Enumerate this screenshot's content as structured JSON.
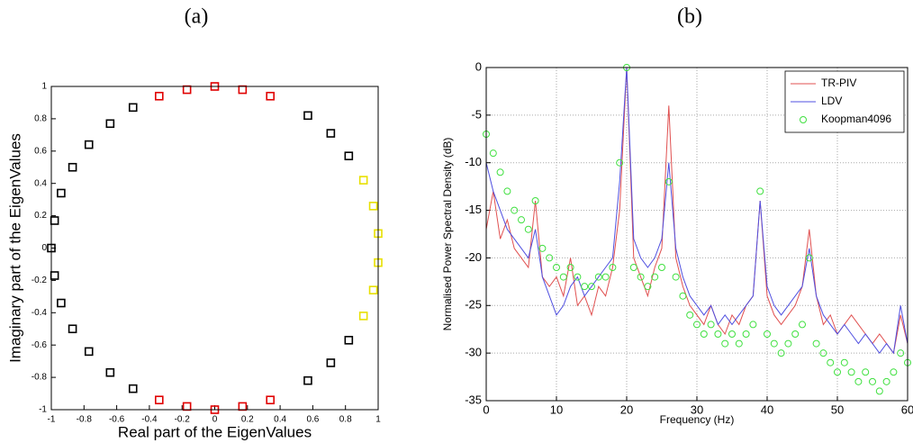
{
  "chart_data": [
    {
      "type": "scatter",
      "title": "(a)",
      "x_label": "Real part of the EigenValues",
      "y_label": "Imaginary part of the EigenValues",
      "xlim": [
        -1,
        1
      ],
      "ylim": [
        -1,
        1
      ],
      "xticks": [
        -1,
        -0.8,
        -0.6,
        -0.4,
        -0.2,
        0,
        0.2,
        0.4,
        0.6,
        0.8,
        1
      ],
      "yticks": [
        -1,
        -0.8,
        -0.6,
        -0.4,
        -0.2,
        0,
        0.2,
        0.4,
        0.6,
        0.8,
        1
      ],
      "grid": false,
      "series": [
        {
          "color": "#000000",
          "x": [
            0.82,
            0.71,
            0.57,
            -0.5,
            -0.64,
            -0.77,
            -0.87,
            -0.94,
            -0.98,
            -1,
            -0.98,
            -0.94,
            -0.87,
            -0.77,
            -0.64,
            -0.5,
            0.57,
            0.71,
            0.82
          ],
          "values": [
            0.57,
            0.71,
            0.82,
            0.87,
            0.77,
            0.64,
            0.5,
            0.34,
            0.17,
            0,
            -0.17,
            -0.34,
            -0.5,
            -0.64,
            -0.77,
            -0.87,
            -0.82,
            -0.71,
            -0.57
          ]
        },
        {
          "color": "#e00000",
          "x": [
            0.34,
            0.17,
            0,
            -0.17,
            -0.34,
            0.34,
            0.17,
            0,
            -0.17,
            -0.34
          ],
          "values": [
            0.94,
            0.98,
            1,
            0.98,
            0.94,
            -0.94,
            -0.98,
            -1,
            -0.98,
            -0.94
          ]
        },
        {
          "color": "#e8e000",
          "x": [
            0.91,
            0.97,
            1,
            1,
            0.97,
            0.91
          ],
          "values": [
            -0.42,
            -0.26,
            -0.09,
            0.09,
            0.26,
            0.42
          ]
        }
      ]
    },
    {
      "type": "line",
      "title": "(b)",
      "x_label": "Frequency (Hz)",
      "y_label": "Normalised Power Spectral Density (dB)",
      "xlim": [
        0,
        60
      ],
      "ylim": [
        -35,
        0
      ],
      "xticks": [
        0,
        10,
        20,
        30,
        40,
        50,
        60
      ],
      "yticks": [
        -35,
        -30,
        -25,
        -20,
        -15,
        -10,
        -5,
        0
      ],
      "grid": true,
      "legend": "upper-right",
      "x": [
        0,
        1,
        2,
        3,
        4,
        5,
        6,
        7,
        8,
        9,
        10,
        11,
        12,
        13,
        14,
        15,
        16,
        17,
        18,
        19,
        20,
        21,
        22,
        23,
        24,
        25,
        26,
        27,
        28,
        29,
        30,
        31,
        32,
        33,
        34,
        35,
        36,
        37,
        38,
        39,
        40,
        41,
        42,
        43,
        44,
        45,
        46,
        47,
        48,
        49,
        50,
        51,
        52,
        53,
        54,
        55,
        56,
        57,
        58,
        59,
        60
      ],
      "series": [
        {
          "name": "TR-PIV",
          "color": "#e05050",
          "style": "line",
          "values": [
            -17,
            -13,
            -18,
            -16,
            -19,
            -20,
            -21,
            -14,
            -22,
            -23,
            -22,
            -24,
            -20,
            -25,
            -24,
            -26,
            -23,
            -24,
            -21,
            -15,
            0,
            -20,
            -22,
            -24,
            -21,
            -19,
            -4,
            -20,
            -23,
            -25,
            -26,
            -27,
            -25,
            -27,
            -28,
            -26,
            -27,
            -25,
            -24,
            -14,
            -24,
            -26,
            -27,
            -26,
            -25,
            -23,
            -17,
            -24,
            -27,
            -26,
            -28,
            -27,
            -26,
            -27,
            -28,
            -29,
            -28,
            -29,
            -30,
            -26,
            -29
          ]
        },
        {
          "name": "LDV",
          "color": "#5050e0",
          "style": "line",
          "values": [
            -10,
            -13,
            -15,
            -17,
            -18,
            -19,
            -20,
            -17,
            -22,
            -24,
            -26,
            -25,
            -23,
            -22,
            -24,
            -23,
            -22,
            -21,
            -20,
            -12,
            0,
            -18,
            -20,
            -21,
            -20,
            -18,
            -10,
            -19,
            -22,
            -24,
            -25,
            -26,
            -25,
            -27,
            -26,
            -27,
            -26,
            -25,
            -24,
            -14,
            -23,
            -25,
            -26,
            -25,
            -24,
            -23,
            -19,
            -24,
            -26,
            -27,
            -28,
            -27,
            -28,
            -29,
            -28,
            -29,
            -30,
            -29,
            -30,
            -25,
            -29
          ]
        },
        {
          "name": "Koopman4096",
          "color": "#40e040",
          "style": "markers",
          "values": [
            -7,
            -9,
            -11,
            -13,
            -15,
            -16,
            -17,
            -14,
            -19,
            -20,
            -21,
            -22,
            -21,
            -22,
            -23,
            -23,
            -22,
            -22,
            -21,
            -10,
            0,
            -21,
            -22,
            -23,
            -22,
            -21,
            -12,
            -22,
            -24,
            -26,
            -27,
            -28,
            -27,
            -28,
            -29,
            -28,
            -29,
            -28,
            -27,
            -13,
            -28,
            -29,
            -30,
            -29,
            -28,
            -27,
            -20,
            -29,
            -30,
            -31,
            -32,
            -31,
            -32,
            -33,
            -32,
            -33,
            -34,
            -33,
            -32,
            -30,
            -31
          ]
        }
      ]
    }
  ]
}
